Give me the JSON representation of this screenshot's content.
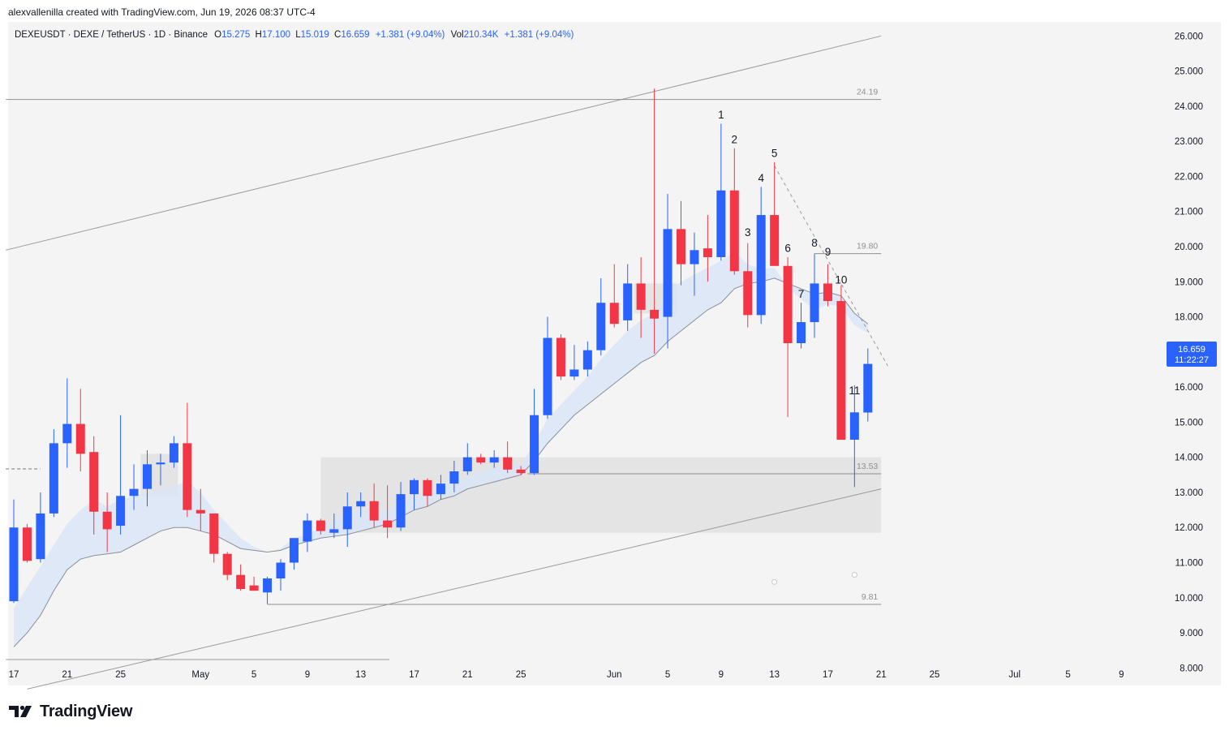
{
  "header": {
    "credit": "alexvallenilla created with TradingView.com, Jun 19, 2026 08:37 UTC-4"
  },
  "brand": {
    "name": "TradingView",
    "logo_icon": "tradingview-logo-icon"
  },
  "legend": {
    "symbol": "DEXEUSDT · DEXE / TetherUS · 1D · Binance",
    "o_label": "O",
    "o": "15.275",
    "h_label": "H",
    "h": "17.100",
    "l_label": "L",
    "l": "15.019",
    "c_label": "C",
    "c": "16.659",
    "change": "+1.381 (+9.04%)",
    "vol_label": "Vol",
    "vol": "210.34K",
    "vol_change": "+1.381 (+9.04%)"
  },
  "price_badge": {
    "price": "16.659",
    "countdown": "11:22:27"
  },
  "colors": {
    "up": "#2962ff",
    "down": "#f23645",
    "badge": "#2962ff",
    "cloud": "#dbe5f7",
    "zone": "#e0e0e0",
    "plot_bg": "#f4f4f4"
  },
  "chart_data": {
    "type": "candlestick",
    "y_axis": {
      "min": 7.5,
      "max": 26.4,
      "ticks": [
        "26.000",
        "25.000",
        "24.000",
        "23.000",
        "22.000",
        "21.000",
        "20.000",
        "19.000",
        "18.000",
        "17.000",
        "16.000",
        "15.000",
        "14.000",
        "13.000",
        "12.000",
        "11.000",
        "10.000",
        "9.000",
        "8.000"
      ]
    },
    "x_axis": {
      "ticks": [
        {
          "label": "17",
          "day": 0
        },
        {
          "label": "21",
          "day": 4
        },
        {
          "label": "25",
          "day": 8
        },
        {
          "label": "May",
          "day": 14
        },
        {
          "label": "5",
          "day": 18
        },
        {
          "label": "9",
          "day": 22
        },
        {
          "label": "13",
          "day": 26
        },
        {
          "label": "17",
          "day": 30
        },
        {
          "label": "21",
          "day": 34
        },
        {
          "label": "25",
          "day": 38
        },
        {
          "label": "Jun",
          "day": 45
        },
        {
          "label": "5",
          "day": 49
        },
        {
          "label": "9",
          "day": 53
        },
        {
          "label": "13",
          "day": 57
        },
        {
          "label": "17",
          "day": 61
        },
        {
          "label": "21",
          "day": 65
        },
        {
          "label": "25",
          "day": 69
        },
        {
          "label": "Jul",
          "day": 75
        },
        {
          "label": "5",
          "day": 79
        },
        {
          "label": "9",
          "day": 83
        }
      ]
    },
    "candles": [
      {
        "o": 9.9,
        "h": 12.8,
        "l": 9.85,
        "c": 12.0
      },
      {
        "o": 12.0,
        "h": 12.1,
        "l": 11.0,
        "c": 11.05
      },
      {
        "o": 11.1,
        "h": 13.0,
        "l": 11.0,
        "c": 12.4
      },
      {
        "o": 12.4,
        "h": 14.8,
        "l": 12.3,
        "c": 14.4
      },
      {
        "o": 14.4,
        "h": 16.25,
        "l": 13.7,
        "c": 14.95
      },
      {
        "o": 14.95,
        "h": 15.95,
        "l": 13.6,
        "c": 14.1
      },
      {
        "o": 14.15,
        "h": 14.6,
        "l": 11.8,
        "c": 12.45
      },
      {
        "o": 12.45,
        "h": 13.0,
        "l": 11.3,
        "c": 11.95
      },
      {
        "o": 12.05,
        "h": 15.2,
        "l": 11.8,
        "c": 12.9
      },
      {
        "o": 12.9,
        "h": 13.8,
        "l": 12.5,
        "c": 13.1
      },
      {
        "o": 13.1,
        "h": 14.2,
        "l": 12.6,
        "c": 13.8
      },
      {
        "o": 13.8,
        "h": 14.1,
        "l": 13.2,
        "c": 13.85
      },
      {
        "o": 13.85,
        "h": 14.6,
        "l": 13.7,
        "c": 14.4
      },
      {
        "o": 14.4,
        "h": 15.55,
        "l": 12.3,
        "c": 12.5
      },
      {
        "o": 12.5,
        "h": 13.1,
        "l": 11.9,
        "c": 12.4
      },
      {
        "o": 12.4,
        "h": 12.4,
        "l": 11.0,
        "c": 11.25
      },
      {
        "o": 11.25,
        "h": 11.3,
        "l": 10.5,
        "c": 10.65
      },
      {
        "o": 10.65,
        "h": 10.95,
        "l": 10.2,
        "c": 10.25
      },
      {
        "o": 10.35,
        "h": 10.6,
        "l": 10.2,
        "c": 10.2
      },
      {
        "o": 10.15,
        "h": 10.6,
        "l": 9.82,
        "c": 10.55
      },
      {
        "o": 10.55,
        "h": 11.1,
        "l": 10.2,
        "c": 11.0
      },
      {
        "o": 11.0,
        "h": 11.7,
        "l": 10.8,
        "c": 11.7
      },
      {
        "o": 11.6,
        "h": 12.4,
        "l": 11.3,
        "c": 12.2
      },
      {
        "o": 12.2,
        "h": 12.25,
        "l": 11.8,
        "c": 11.9
      },
      {
        "o": 11.85,
        "h": 12.4,
        "l": 11.7,
        "c": 11.95
      },
      {
        "o": 11.95,
        "h": 13.0,
        "l": 11.45,
        "c": 12.6
      },
      {
        "o": 12.6,
        "h": 13.0,
        "l": 12.3,
        "c": 12.75
      },
      {
        "o": 12.75,
        "h": 13.25,
        "l": 12.0,
        "c": 12.2
      },
      {
        "o": 12.2,
        "h": 13.2,
        "l": 11.7,
        "c": 12.0
      },
      {
        "o": 12.0,
        "h": 13.3,
        "l": 11.9,
        "c": 12.95
      },
      {
        "o": 12.95,
        "h": 13.4,
        "l": 12.5,
        "c": 13.35
      },
      {
        "o": 13.35,
        "h": 13.4,
        "l": 12.6,
        "c": 12.9
      },
      {
        "o": 12.95,
        "h": 13.5,
        "l": 12.8,
        "c": 13.25
      },
      {
        "o": 13.25,
        "h": 13.9,
        "l": 13.0,
        "c": 13.6
      },
      {
        "o": 13.6,
        "h": 14.4,
        "l": 13.5,
        "c": 14.0
      },
      {
        "o": 14.0,
        "h": 14.1,
        "l": 13.8,
        "c": 13.85
      },
      {
        "o": 13.85,
        "h": 14.2,
        "l": 13.7,
        "c": 14.0
      },
      {
        "o": 14.0,
        "h": 14.45,
        "l": 13.55,
        "c": 13.65
      },
      {
        "o": 13.65,
        "h": 13.75,
        "l": 13.5,
        "c": 13.55
      },
      {
        "o": 13.55,
        "h": 15.95,
        "l": 13.5,
        "c": 15.2
      },
      {
        "o": 15.2,
        "h": 18.0,
        "l": 15.1,
        "c": 17.4
      },
      {
        "o": 17.4,
        "h": 17.5,
        "l": 16.2,
        "c": 16.3
      },
      {
        "o": 16.3,
        "h": 17.2,
        "l": 16.2,
        "c": 16.5
      },
      {
        "o": 16.5,
        "h": 17.3,
        "l": 16.3,
        "c": 17.05
      },
      {
        "o": 17.05,
        "h": 19.1,
        "l": 16.9,
        "c": 18.4
      },
      {
        "o": 18.4,
        "h": 19.5,
        "l": 17.7,
        "c": 17.8
      },
      {
        "o": 17.9,
        "h": 19.5,
        "l": 17.6,
        "c": 18.95
      },
      {
        "o": 18.95,
        "h": 19.7,
        "l": 17.4,
        "c": 18.2
      },
      {
        "o": 18.2,
        "h": 24.5,
        "l": 16.95,
        "c": 17.95
      },
      {
        "o": 18.0,
        "h": 21.5,
        "l": 17.1,
        "c": 20.5
      },
      {
        "o": 20.5,
        "h": 21.3,
        "l": 18.9,
        "c": 19.5
      },
      {
        "o": 19.5,
        "h": 20.4,
        "l": 18.6,
        "c": 19.9
      },
      {
        "o": 19.95,
        "h": 20.9,
        "l": 19.0,
        "c": 19.7
      },
      {
        "o": 19.7,
        "h": 23.5,
        "l": 19.6,
        "c": 21.6
      },
      {
        "o": 21.6,
        "h": 22.8,
        "l": 19.2,
        "c": 19.3
      },
      {
        "o": 19.3,
        "h": 20.1,
        "l": 17.7,
        "c": 18.05
      },
      {
        "o": 18.05,
        "h": 21.7,
        "l": 17.8,
        "c": 20.9
      },
      {
        "o": 20.9,
        "h": 22.4,
        "l": 19.5,
        "c": 19.45
      },
      {
        "o": 19.45,
        "h": 19.7,
        "l": 15.15,
        "c": 17.25
      },
      {
        "o": 17.25,
        "h": 18.4,
        "l": 17.1,
        "c": 17.85
      },
      {
        "o": 17.85,
        "h": 19.8,
        "l": 17.4,
        "c": 18.95
      },
      {
        "o": 18.95,
        "h": 19.5,
        "l": 18.3,
        "c": 18.45
      },
      {
        "o": 18.45,
        "h": 18.9,
        "l": 14.5,
        "c": 14.5
      },
      {
        "o": 14.5,
        "h": 16.05,
        "l": 13.15,
        "c": 15.28
      },
      {
        "o": 15.275,
        "h": 17.1,
        "l": 15.019,
        "c": 16.659
      }
    ],
    "count_labels": [
      {
        "text": "1",
        "day": 53,
        "price": 23.65
      },
      {
        "text": "2",
        "day": 54,
        "price": 22.95
      },
      {
        "text": "3",
        "day": 55,
        "price": 20.3
      },
      {
        "text": "4",
        "day": 56,
        "price": 21.85
      },
      {
        "text": "5",
        "day": 57,
        "price": 22.55
      },
      {
        "text": "6",
        "day": 58,
        "price": 19.85
      },
      {
        "text": "7",
        "day": 59,
        "price": 18.55
      },
      {
        "text": "8",
        "day": 60,
        "price": 20.0
      },
      {
        "text": "9",
        "day": 61,
        "price": 19.75
      },
      {
        "text": "10",
        "day": 62,
        "price": 18.95
      },
      {
        "text": "11",
        "day": 63,
        "price": 15.8
      }
    ],
    "levels": [
      {
        "label": "24.19",
        "price": 24.19,
        "from_day": -0.6,
        "to_day": 65.0
      },
      {
        "label": "19.80",
        "price": 19.8,
        "from_day": 60.0,
        "to_day": 65.0
      },
      {
        "label": "13.53",
        "price": 13.53,
        "from_day": 38.5,
        "to_day": 65.0
      },
      {
        "label": "9.81",
        "price": 9.81,
        "from_day": 19.0,
        "to_day": 65.0
      }
    ],
    "zones": [
      {
        "from_day": 23.0,
        "to_day": 65.0,
        "top": 14.0,
        "bottom": 11.85
      },
      {
        "from_day": 9.5,
        "to_day": 12.3,
        "top": 14.1,
        "bottom": 12.9
      },
      {
        "from_day": 46.5,
        "to_day": 49.7,
        "top": 18.95,
        "bottom": 18.1
      }
    ],
    "channel": {
      "upper": {
        "x1": -0.6,
        "y1": 19.9,
        "x2": 65.0,
        "y2": 26.0
      },
      "lower": {
        "x1": 1.0,
        "y1": 7.4,
        "x2": 65.0,
        "y2": 13.1
      }
    },
    "trendline": {
      "x1": 57.0,
      "y1": 22.3,
      "x2": 65.5,
      "y2": 16.6
    },
    "guides": [
      {
        "x1": -0.6,
        "y1": 13.67,
        "x2": 2.0,
        "y2": 13.67
      }
    ],
    "cloud_base": [
      8.6,
      9.0,
      9.5,
      10.2,
      10.8,
      11.1,
      11.2,
      11.25,
      11.3,
      11.5,
      11.7,
      11.9,
      12.0,
      12.0,
      11.9,
      11.8,
      11.6,
      11.4,
      11.35,
      11.3,
      11.35,
      11.5,
      11.6,
      11.7,
      11.75,
      11.8,
      11.9,
      12.0,
      12.1,
      12.3,
      12.5,
      12.6,
      12.8,
      12.9,
      13.1,
      13.2,
      13.3,
      13.4,
      13.5,
      13.9,
      14.4,
      14.8,
      15.2,
      15.5,
      15.8,
      16.1,
      16.4,
      16.7,
      16.9,
      17.3,
      17.6,
      17.9,
      18.2,
      18.4,
      18.8,
      18.95,
      19.0,
      19.1,
      18.95,
      18.8,
      18.65,
      18.7,
      18.6,
      18.1,
      17.8
    ],
    "cloud_top": [
      9.7,
      10.3,
      10.9,
      11.5,
      12.1,
      12.5,
      12.8,
      12.6,
      12.8,
      12.9,
      13.0,
      13.1,
      13.2,
      13.3,
      13.0,
      12.5,
      12.1,
      11.7,
      11.45,
      11.3,
      11.4,
      11.7,
      11.8,
      12.0,
      12.2,
      12.4,
      12.5,
      12.55,
      12.5,
      12.7,
      12.9,
      13.0,
      13.15,
      13.3,
      13.45,
      13.6,
      13.7,
      13.75,
      13.8,
      14.4,
      15.1,
      15.5,
      15.9,
      16.3,
      16.8,
      17.2,
      17.6,
      17.9,
      18.1,
      18.7,
      19.0,
      19.2,
      19.4,
      19.6,
      19.85,
      19.5,
      19.35,
      19.4,
      18.85,
      18.5,
      18.2,
      18.35,
      18.3,
      17.75,
      17.55
    ],
    "markers": [
      {
        "day": 57,
        "price": 10.45
      },
      {
        "day": 63,
        "price": 10.65
      }
    ]
  }
}
